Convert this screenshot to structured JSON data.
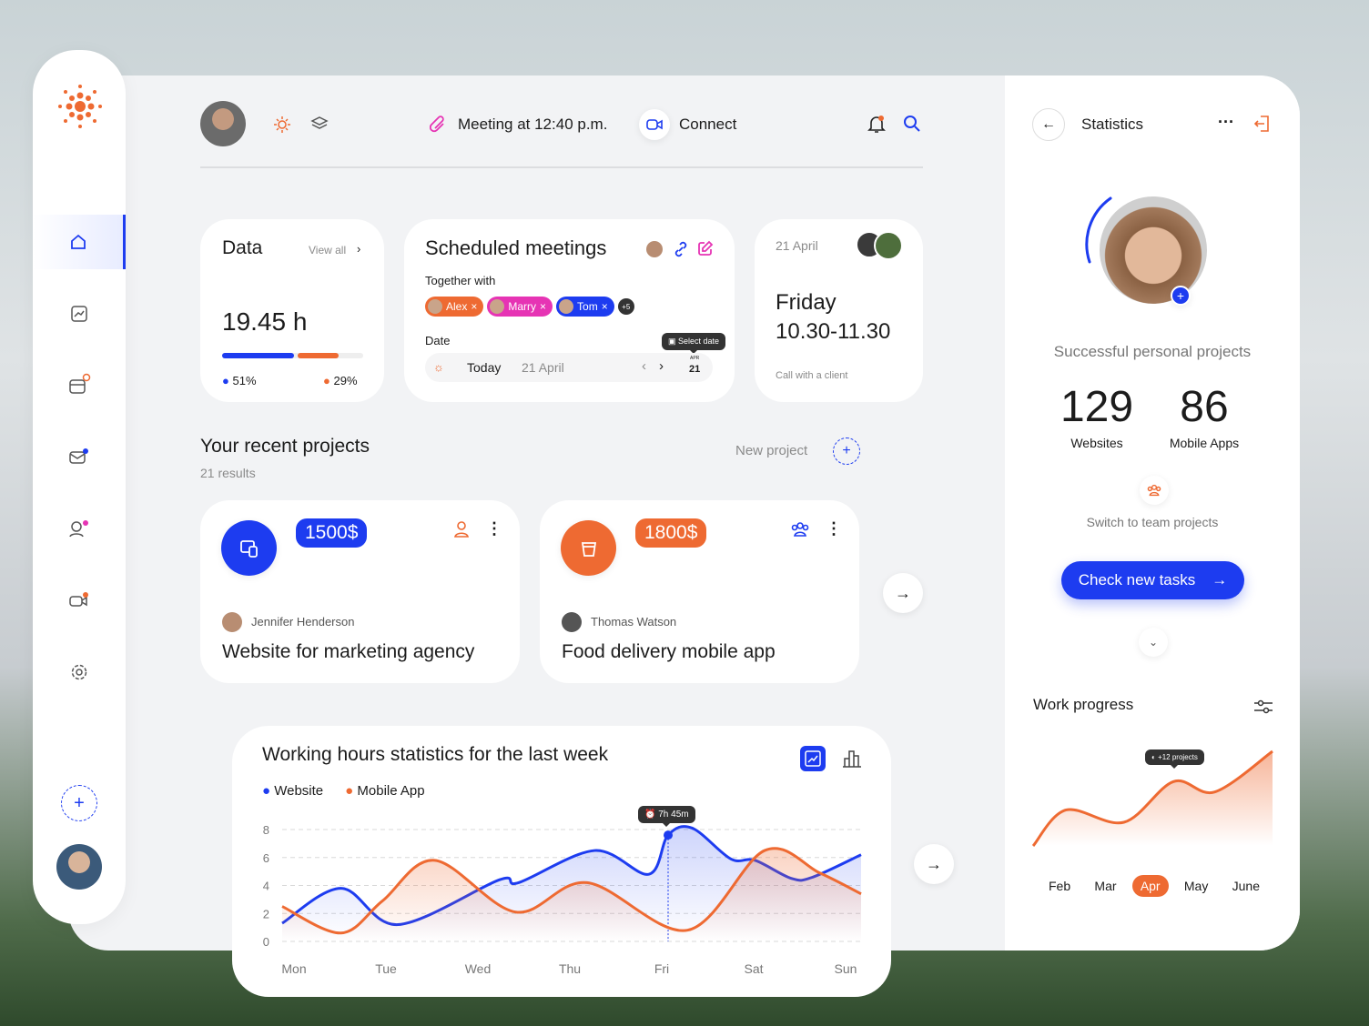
{
  "colors": {
    "accent_blue": "#1d3cf0",
    "accent_orange": "#ee6a32",
    "accent_pink": "#e634b4"
  },
  "header": {
    "meeting_label": "Meeting at 12:40 p.m.",
    "connect_label": "Connect"
  },
  "data_card": {
    "title": "Data",
    "view_all": "View all",
    "value": "19.45 h",
    "website_pct": "51%",
    "mobile_pct": "29%",
    "website_progress": 51,
    "mobile_progress": 29
  },
  "meetings": {
    "title": "Scheduled meetings",
    "together_label": "Together with",
    "people": [
      {
        "name": "Alex",
        "color": "#ee6a32"
      },
      {
        "name": "Marry",
        "color": "#e634b4"
      },
      {
        "name": "Tom",
        "color": "#1d3cf0"
      }
    ],
    "more": "+5",
    "date_label": "Date",
    "today": "Today",
    "date_value": "21 April",
    "tooltip": "Select date",
    "cal_month": "APR",
    "cal_day": "21"
  },
  "event": {
    "date": "21 April",
    "day": "Friday",
    "time": "10.30-11.30",
    "note": "Call with a client"
  },
  "projects": {
    "title": "Your recent projects",
    "results": "21 results",
    "new_project": "New project",
    "items": [
      {
        "price": "1500$",
        "person": "Jennifer Henderson",
        "name": "Website for marketing agency"
      },
      {
        "price": "1800$",
        "person": "Thomas Watson",
        "name": "Food delivery mobile app"
      }
    ]
  },
  "chart_data": {
    "type": "line",
    "title": "Working hours statistics for the last week",
    "categories": [
      "Mon",
      "Tue",
      "Wed",
      "Thu",
      "Fri",
      "Sat",
      "Sun"
    ],
    "ylim": [
      0,
      8
    ],
    "yticks": [
      "0",
      "2",
      "4",
      "6",
      "8"
    ],
    "grid": true,
    "legend": "top-left",
    "tooltip": "7h 45m",
    "series": [
      {
        "name": "Website",
        "color": "#1d3cf0",
        "points": [
          [
            0,
            1.3
          ],
          [
            0.61,
            3.8
          ],
          [
            1.2,
            1.2
          ],
          [
            2.25,
            4.4
          ],
          [
            2.45,
            4.2
          ],
          [
            3.24,
            6.5
          ],
          [
            3.8,
            4.8
          ],
          [
            4.0,
            7.6
          ],
          [
            4.25,
            8.1
          ],
          [
            4.65,
            5.9
          ],
          [
            4.9,
            5.8
          ],
          [
            5.28,
            4.5
          ],
          [
            5.5,
            4.6
          ],
          [
            6,
            6.2
          ]
        ]
      },
      {
        "name": "Mobile App",
        "color": "#ee6a32",
        "points": [
          [
            0,
            2.5
          ],
          [
            0.61,
            0.6
          ],
          [
            1.04,
            2.9
          ],
          [
            1.58,
            5.8
          ],
          [
            2.42,
            2.1
          ],
          [
            3.16,
            4.2
          ],
          [
            4.2,
            0.8
          ],
          [
            5.0,
            6.5
          ],
          [
            5.57,
            4.9
          ],
          [
            6,
            3.4
          ]
        ]
      }
    ]
  },
  "stats": {
    "title": "Statistics",
    "heading": "Successful personal projects",
    "websites_count": "129",
    "websites_label": "Websites",
    "apps_count": "86",
    "apps_label": "Mobile Apps",
    "switch_label": "Switch to team projects",
    "cta": "Check new tasks"
  },
  "work_progress": {
    "title": "Work progress",
    "months": [
      "Feb",
      "Mar",
      "Apr",
      "May",
      "June"
    ],
    "selected": "Apr",
    "tooltip": "+12 projects",
    "values": [
      [
        0,
        0
      ],
      [
        0.4,
        38
      ],
      [
        1.1,
        25
      ],
      [
        1.7,
        68
      ],
      [
        2.2,
        57
      ],
      [
        2.9,
        100
      ]
    ]
  }
}
